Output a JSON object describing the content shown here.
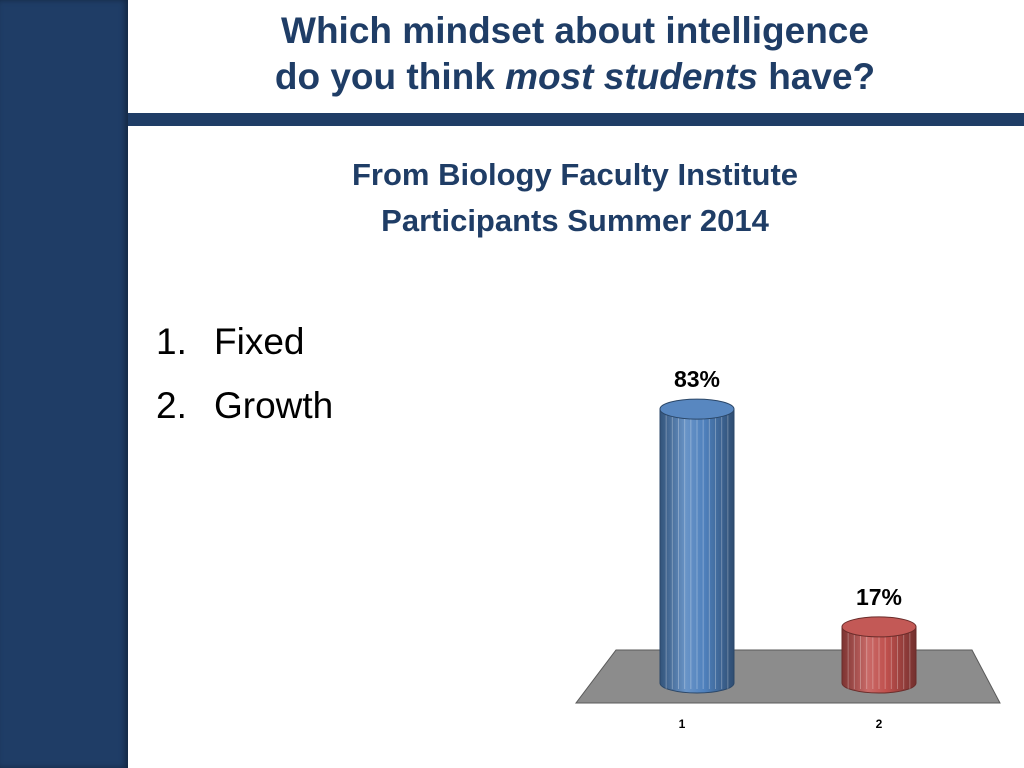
{
  "slide": {
    "title_line1": "Which mindset about intelligence",
    "title_line2_pre": "do you think ",
    "title_line2_em": "most students",
    "title_line2_post": " have?",
    "subtitle_line1": "From Biology Faculty Institute",
    "subtitle_line2": "Participants Summer 2014"
  },
  "options": [
    {
      "number": "1.",
      "label": "Fixed"
    },
    {
      "number": "2.",
      "label": "Growth"
    }
  ],
  "colors": {
    "brand": "#1f3d66",
    "bar1": "#4f81bd",
    "bar2": "#c0504d",
    "floor": "#8c8c8c"
  },
  "chart_data": {
    "type": "bar",
    "style": "3d-cylinder",
    "categories": [
      "1",
      "2"
    ],
    "values": [
      83,
      17
    ],
    "data_labels": [
      "83%",
      "17%"
    ],
    "ylim": [
      0,
      100
    ],
    "grid": false,
    "legend": "none"
  }
}
